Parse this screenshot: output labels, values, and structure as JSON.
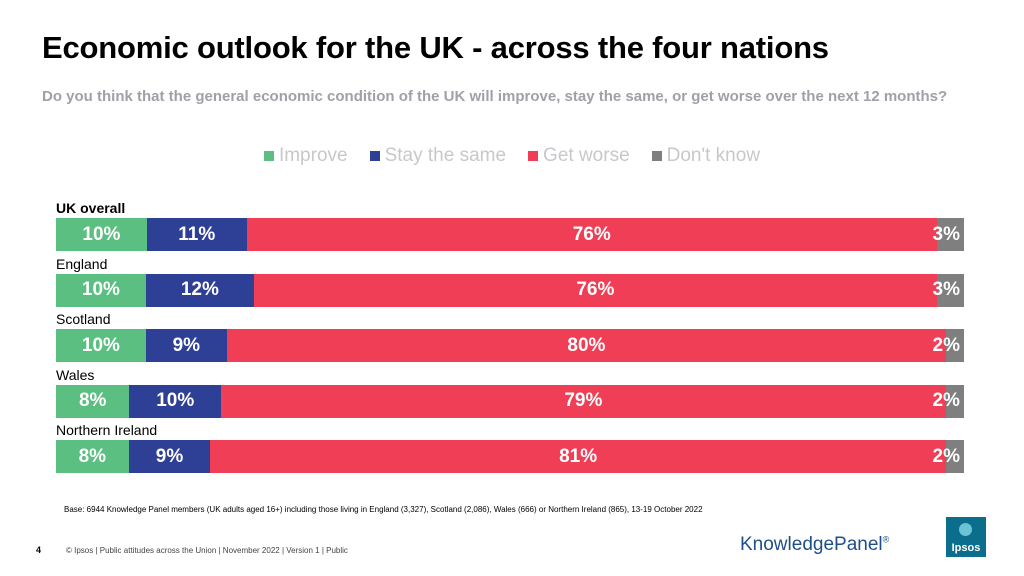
{
  "title": "Economic outlook for the UK - across the four nations",
  "subtitle": "Do you think that the general economic condition of the UK will improve, stay the same, or get worse over the next 12 months?",
  "colors": {
    "improve": "#5bbf82",
    "same": "#2e3f96",
    "worse": "#ef3e55",
    "dontknow": "#7f7f7f"
  },
  "chart_data": {
    "type": "bar",
    "orientation": "horizontal",
    "stacked": true,
    "categories": [
      "UK overall",
      "England",
      "Scotland",
      "Wales",
      "Northern  Ireland"
    ],
    "series": [
      {
        "name": "Improve",
        "values": [
          10,
          10,
          10,
          8,
          8
        ]
      },
      {
        "name": "Stay the same",
        "values": [
          11,
          12,
          9,
          10,
          9
        ]
      },
      {
        "name": "Get worse",
        "values": [
          76,
          76,
          80,
          79,
          81
        ]
      },
      {
        "name": "Don't know",
        "values": [
          3,
          3,
          2,
          2,
          2
        ]
      }
    ],
    "unit": "%",
    "legend_position": "top-center"
  },
  "base_note": "Base: 6944 Knowledge Panel members (UK adults aged 16+) including those living in England (3,327), Scotland (2,086), Wales (666) or Northern Ireland (865), 13-19 October 2022",
  "footer": {
    "page_number": "4",
    "text": "© Ipsos | Public attitudes across the Union | November 2022 | Version 1 | Public",
    "brand": "KnowledgePanel",
    "brand_mark": "®",
    "logo": "Ipsos"
  }
}
